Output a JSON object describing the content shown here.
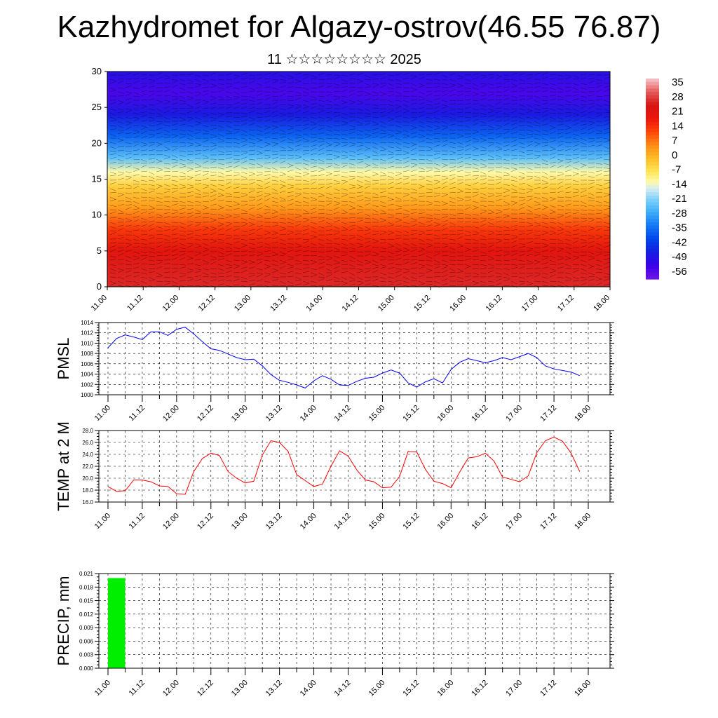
{
  "title": "Kazhydromet for Algazy-ostrov(46.55 76.87)",
  "subtitle": "11 ☆☆☆☆☆☆☆☆ 2025",
  "x_ticks": [
    "11.00",
    "11.12",
    "12.00",
    "12.12",
    "13.00",
    "13.12",
    "14.00",
    "14.12",
    "15.00",
    "15.12",
    "16.00",
    "16.12",
    "17.00",
    "17.12",
    "18.00"
  ],
  "chart_data": [
    {
      "type": "heatmap",
      "y_ticks": [
        "0",
        "5",
        "10",
        "15",
        "20",
        "25",
        "30"
      ],
      "ylim": [
        0,
        30
      ],
      "colorbar": {
        "labels": [
          "35",
          "28",
          "21",
          "14",
          "7",
          "0",
          "-7",
          "-14",
          "-21",
          "-28",
          "-35",
          "-42",
          "-49",
          "-56"
        ],
        "range": [
          -63,
          42
        ]
      },
      "temperature_profile_by_level": [
        {
          "level": 0,
          "value": 30
        },
        {
          "level": 5,
          "value": 24
        },
        {
          "level": 8,
          "value": 16
        },
        {
          "level": 11,
          "value": 5
        },
        {
          "level": 14,
          "value": -3
        },
        {
          "level": 16,
          "value": -12
        },
        {
          "level": 18,
          "value": -25
        },
        {
          "level": 21,
          "value": -38
        },
        {
          "level": 24,
          "value": -50
        },
        {
          "level": 27,
          "value": -58
        },
        {
          "level": 30,
          "value": -52
        }
      ],
      "overlay": "wind barbs",
      "grid": false
    },
    {
      "type": "line",
      "ylabel": "PMSL",
      "ylim": [
        1000,
        1014
      ],
      "y_ticks": [
        "1000",
        "1002",
        "1004",
        "1006",
        "1008",
        "1010",
        "1012",
        "1014"
      ],
      "color": "#0000ff",
      "x": [
        0,
        3,
        6,
        9,
        12,
        15,
        18,
        21,
        24,
        27,
        30,
        33,
        36,
        39,
        42,
        45,
        48,
        51,
        54,
        57,
        60,
        63,
        66,
        69,
        72,
        75,
        78,
        81,
        84,
        87,
        90,
        93,
        96,
        99,
        102,
        105,
        108,
        111,
        114,
        117,
        120,
        123,
        126,
        129,
        132,
        135,
        138,
        141,
        144,
        147,
        150,
        153,
        156,
        159,
        162,
        165
      ],
      "values": [
        1009.1,
        1010.9,
        1011.6,
        1011.2,
        1010.7,
        1012.2,
        1012.2,
        1011.5,
        1012.7,
        1013.1,
        1011.8,
        1010.3,
        1008.9,
        1008.6,
        1007.9,
        1007.2,
        1006.8,
        1006.9,
        1005.6,
        1003.9,
        1002.8,
        1002.4,
        1001.9,
        1001.3,
        1002.7,
        1003.7,
        1003.0,
        1001.9,
        1001.8,
        1002.6,
        1003.2,
        1003.4,
        1004.2,
        1004.8,
        1004.2,
        1002.3,
        1001.5,
        1002.5,
        1003.1,
        1002.3,
        1004.9,
        1006.3,
        1007.0,
        1006.6,
        1006.2,
        1006.6,
        1007.2,
        1006.8,
        1007.4,
        1008.0,
        1007.2,
        1005.6,
        1005.0,
        1004.7,
        1004.4,
        1003.7
      ]
    },
    {
      "type": "line",
      "ylabel": "TEMP at 2 M",
      "ylim": [
        16,
        28
      ],
      "y_ticks": [
        "16.0",
        "18.0",
        "20.0",
        "22.0",
        "24.0",
        "26.0",
        "28.0"
      ],
      "color": "#ff0000",
      "x": [
        0,
        3,
        6,
        9,
        12,
        15,
        18,
        21,
        24,
        27,
        30,
        33,
        36,
        39,
        42,
        45,
        48,
        51,
        54,
        57,
        60,
        63,
        66,
        69,
        72,
        75,
        78,
        81,
        84,
        87,
        90,
        93,
        96,
        99,
        102,
        105,
        108,
        111,
        114,
        117,
        120,
        123,
        126,
        129,
        132,
        135,
        138,
        141,
        144,
        147,
        150,
        153,
        156,
        159,
        162,
        165
      ],
      "values": [
        18.6,
        17.8,
        17.9,
        19.7,
        19.7,
        19.4,
        18.7,
        18.6,
        17.4,
        17.3,
        21.1,
        23.3,
        24.2,
        23.8,
        21.1,
        20.0,
        19.2,
        19.5,
        23.9,
        26.3,
        26.0,
        24.5,
        20.6,
        19.6,
        18.6,
        19.0,
        22.0,
        24.6,
        23.7,
        21.4,
        19.7,
        19.4,
        18.4,
        18.5,
        20.3,
        24.5,
        24.4,
        21.5,
        19.5,
        19.1,
        18.4,
        21.0,
        23.4,
        23.6,
        24.2,
        22.9,
        20.2,
        19.8,
        19.4,
        20.4,
        24.3,
        26.3,
        26.9,
        26.2,
        24.2,
        21.1
      ]
    },
    {
      "type": "bar",
      "ylabel": "PRECIP, mm",
      "ylim": [
        0,
        0.021
      ],
      "y_ticks": [
        "0.000",
        "0.003",
        "0.006",
        "0.009",
        "0.012",
        "0.015",
        "0.018",
        "0.021"
      ],
      "color": "#00ee00",
      "bars": [
        {
          "x_start": 0,
          "x_end": 6,
          "value": 0.02
        }
      ]
    }
  ]
}
